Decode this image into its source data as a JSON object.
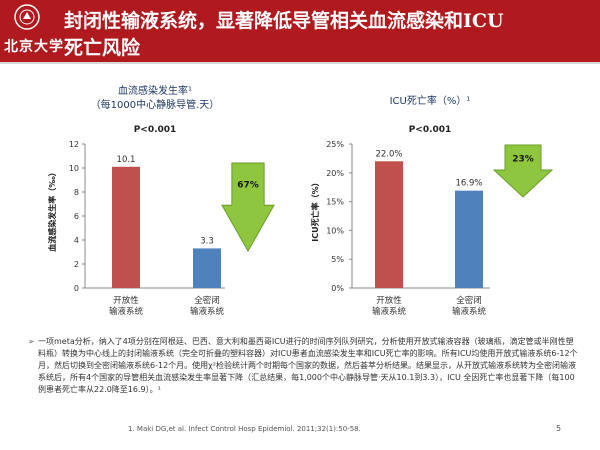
{
  "header": {
    "title_line1": "封闭性输液系统，显著降低导管相关血流感染和ICU",
    "title_line2": "死亡风险",
    "logo_text": "北京大学",
    "bg_color": "#b0191d"
  },
  "chart_data": [
    {
      "type": "bar",
      "title": "血流感染发生率¹",
      "subtitle": "（每1000中心静脉导管.天）",
      "pvalue": "P<0.001",
      "ylabel": "血流感染发生率（‰）",
      "categories": [
        [
          "开放性",
          "输液系统"
        ],
        [
          "全密闭",
          "输液系统"
        ]
      ],
      "values": [
        10.1,
        3.3
      ],
      "value_labels": [
        "10.1",
        "3.3"
      ],
      "colors": [
        "#c0504d",
        "#4f81bd"
      ],
      "ylim": [
        0,
        12
      ],
      "yticks": [
        0,
        2,
        4,
        6,
        8,
        10,
        12
      ],
      "ytick_labels": [
        "0",
        "2",
        "4",
        "6",
        "8",
        "10",
        "12"
      ],
      "reduction_label": "67%"
    },
    {
      "type": "bar",
      "title": "ICU死亡率（%）¹",
      "pvalue": "P<0.001",
      "ylabel": "ICU死亡率（%）",
      "categories": [
        [
          "开放性",
          "输液系统"
        ],
        [
          "全密闭",
          "输液系统"
        ]
      ],
      "values": [
        22.0,
        16.9
      ],
      "value_labels": [
        "22.0%",
        "16.9%"
      ],
      "colors": [
        "#c0504d",
        "#4f81bd"
      ],
      "ylim": [
        0,
        25
      ],
      "yticks": [
        0,
        5,
        10,
        15,
        20,
        25
      ],
      "ytick_labels": [
        "0%",
        "5%",
        "10%",
        "15%",
        "20%",
        "25%"
      ],
      "reduction_label": "23%"
    }
  ],
  "body_text": "一项meta分析，纳入了4项分别在阿根廷、巴西、意大利和墨西哥ICU进行的时间序列队列研究，分析使用开放式输液容器（玻璃瓶，滴定管或半刚性塑料瓶）转换为中心线上的封闭输液系统（完全可折叠的塑料容器）对ICU患者血流感染发生率和ICU死亡率的影响。所有ICU均使用开放式输液系统6-12个月，然后切换到全密闭输液系统6-12个月。使用χ²检验统计两个时期每个国家的数据，然后荟萃分析结果。结果显示，从开放式输液系统转为全密闭输液系统后，所有4个国家的导管相关血流感染发生率显著下降（汇总结果，每1,000个中心静脉导管·天从10.1到3.3），ICU 全因死亡率也显著下降（每100例患者死亡率从22.0降至16.9）。¹",
  "footnote": "1. Maki DG,et al. Infect Control Hosp Epidemiol. 2011;32(1):50-58.",
  "page_number": "5"
}
